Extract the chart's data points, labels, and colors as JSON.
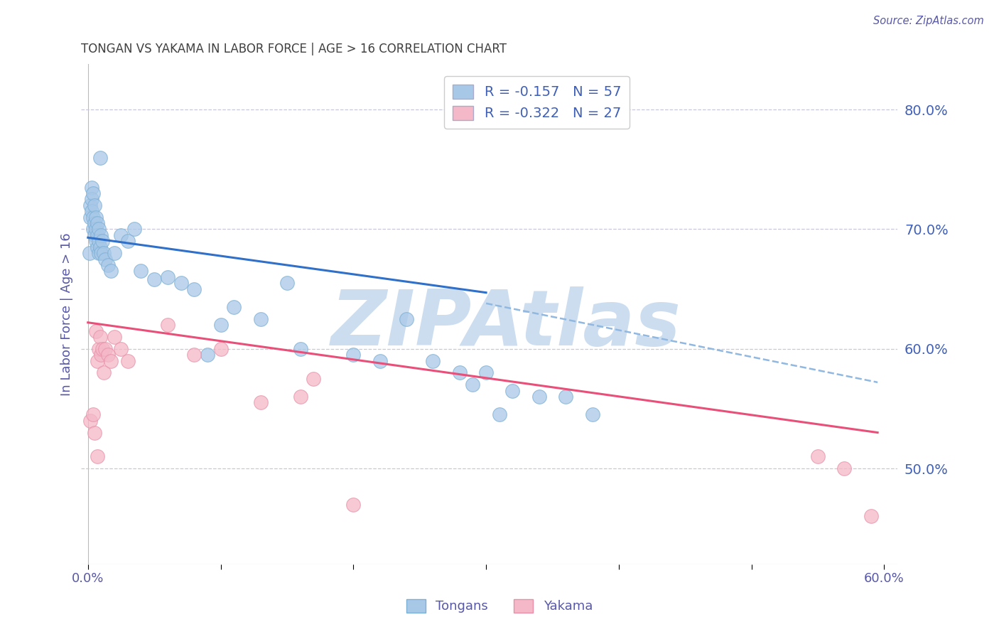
{
  "title": "TONGAN VS YAKAMA IN LABOR FORCE | AGE > 16 CORRELATION CHART",
  "source": "Source: ZipAtlas.com",
  "ylabel": "In Labor Force | Age > 16",
  "right_yticks": [
    0.5,
    0.6,
    0.7,
    0.8
  ],
  "right_ytick_labels": [
    "50.0%",
    "60.0%",
    "70.0%",
    "80.0%"
  ],
  "xlim": [
    -0.005,
    0.61
  ],
  "ylim": [
    0.42,
    0.838
  ],
  "tongan_R": -0.157,
  "tongan_N": 57,
  "yakama_R": -0.322,
  "yakama_N": 27,
  "tongan_color": "#a8c8e8",
  "tongan_edge_color": "#7bafd4",
  "yakama_color": "#f4b8c8",
  "yakama_edge_color": "#e890a8",
  "tongan_line_color": "#3070c8",
  "yakama_line_color": "#e8507a",
  "combined_line_color": "#90b8e0",
  "background_color": "#ffffff",
  "grid_color": "#c8c8d8",
  "title_color": "#404040",
  "axis_label_color": "#5858a8",
  "right_label_color": "#4060b8",
  "watermark_color": "#ccddf0",
  "watermark_text": "ZIPAtlas",
  "tongan_x": [
    0.001,
    0.002,
    0.002,
    0.003,
    0.003,
    0.003,
    0.004,
    0.004,
    0.004,
    0.005,
    0.005,
    0.005,
    0.006,
    0.006,
    0.006,
    0.007,
    0.007,
    0.007,
    0.008,
    0.008,
    0.008,
    0.009,
    0.009,
    0.01,
    0.01,
    0.011,
    0.012,
    0.013,
    0.015,
    0.017,
    0.02,
    0.025,
    0.03,
    0.035,
    0.04,
    0.05,
    0.06,
    0.07,
    0.08,
    0.09,
    0.1,
    0.11,
    0.13,
    0.15,
    0.16,
    0.2,
    0.22,
    0.24,
    0.26,
    0.28,
    0.29,
    0.3,
    0.31,
    0.32,
    0.34,
    0.36,
    0.38
  ],
  "tongan_y": [
    0.68,
    0.72,
    0.71,
    0.735,
    0.725,
    0.715,
    0.73,
    0.71,
    0.7,
    0.72,
    0.705,
    0.695,
    0.71,
    0.7,
    0.69,
    0.705,
    0.695,
    0.685,
    0.7,
    0.69,
    0.68,
    0.76,
    0.685,
    0.695,
    0.68,
    0.69,
    0.68,
    0.675,
    0.67,
    0.665,
    0.68,
    0.695,
    0.69,
    0.7,
    0.665,
    0.658,
    0.66,
    0.655,
    0.65,
    0.595,
    0.62,
    0.635,
    0.625,
    0.655,
    0.6,
    0.595,
    0.59,
    0.625,
    0.59,
    0.58,
    0.57,
    0.58,
    0.545,
    0.565,
    0.56,
    0.56,
    0.545
  ],
  "yakama_x": [
    0.002,
    0.004,
    0.005,
    0.006,
    0.007,
    0.007,
    0.008,
    0.009,
    0.01,
    0.011,
    0.012,
    0.013,
    0.015,
    0.017,
    0.02,
    0.025,
    0.03,
    0.06,
    0.08,
    0.1,
    0.13,
    0.16,
    0.17,
    0.2,
    0.55,
    0.57,
    0.59
  ],
  "yakama_y": [
    0.54,
    0.545,
    0.53,
    0.615,
    0.51,
    0.59,
    0.6,
    0.61,
    0.595,
    0.6,
    0.58,
    0.6,
    0.595,
    0.59,
    0.61,
    0.6,
    0.59,
    0.62,
    0.595,
    0.6,
    0.555,
    0.56,
    0.575,
    0.47,
    0.51,
    0.5,
    0.46
  ],
  "tongan_line_x0": 0.0,
  "tongan_line_y0": 0.693,
  "tongan_line_x1": 0.3,
  "tongan_line_y1": 0.647,
  "yakama_line_x0": 0.0,
  "yakama_line_y0": 0.622,
  "yakama_line_x1": 0.595,
  "yakama_line_y1": 0.53,
  "combined_line_x0": 0.3,
  "combined_line_y0": 0.638,
  "combined_line_x1": 0.595,
  "combined_line_y1": 0.572
}
